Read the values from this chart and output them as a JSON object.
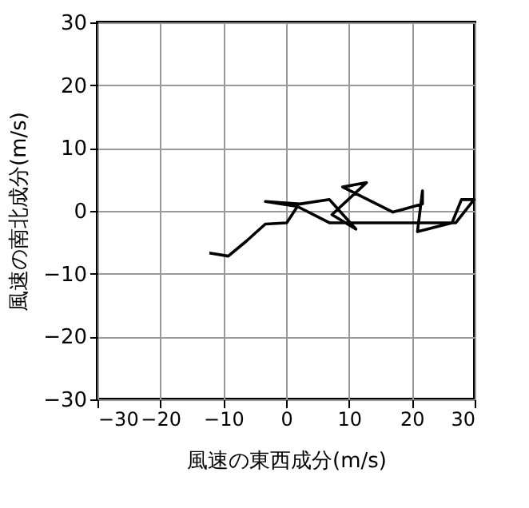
{
  "chart_data": {
    "type": "line",
    "xlabel": "風速の東西成分(m/s)",
    "ylabel": "風速の南北成分(m/s)",
    "x": [
      -12.2,
      -9.2,
      -6.3,
      -3.3,
      0.1,
      1.8,
      -3.3,
      2.2,
      6.9,
      11.1,
      7.3,
      12.8,
      9.0,
      17.0,
      21.7,
      21.7,
      20.9,
      26.4,
      27.9,
      29.9,
      27.0,
      13.2,
      6.9,
      1.8
    ],
    "values": [
      -6.7,
      -7.2,
      -4.8,
      -2.1,
      -1.9,
      0.7,
      1.5,
      1.1,
      1.8,
      -2.9,
      -0.6,
      4.5,
      3.8,
      -0.2,
      1.1,
      3.2,
      -3.3,
      -1.9,
      1.8,
      1.8,
      -1.9,
      -1.9,
      -1.9,
      0.7
    ],
    "color": "#000000",
    "xlim": [
      -30,
      30
    ],
    "ylim": [
      -30,
      30
    ],
    "xticks": [
      -30,
      -20,
      -10,
      0,
      10,
      20,
      30
    ],
    "yticks": [
      -30,
      -20,
      -10,
      0,
      10,
      20,
      30
    ],
    "grid": true
  }
}
